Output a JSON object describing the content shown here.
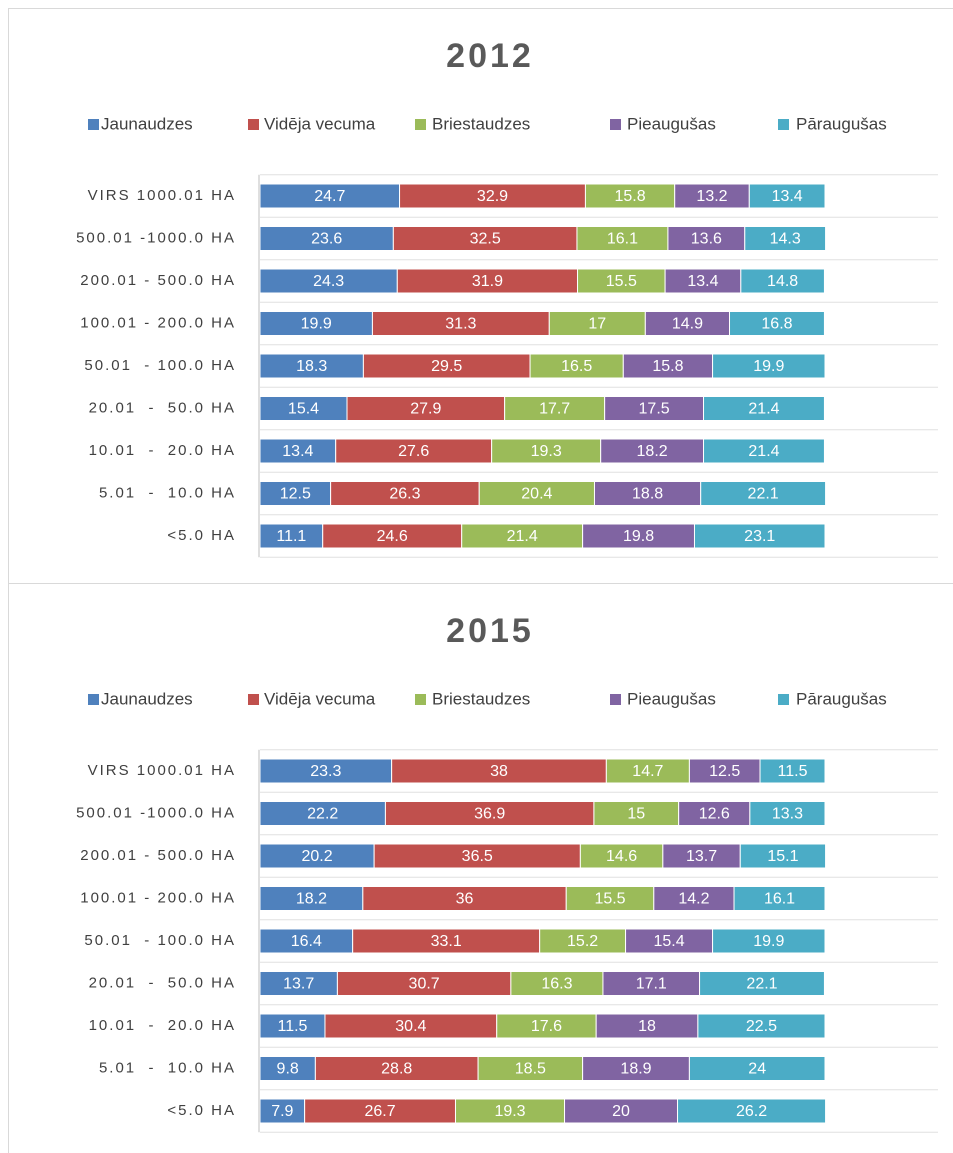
{
  "chart_data": [
    {
      "type": "stacked-bar-horizontal",
      "title": "2012",
      "categories": [
        "VIRS 1000.01 HA",
        "500.01 -1000.0 HA",
        "200.01 - 500.0 HA",
        "100.01 - 200.0 HA",
        "50.01  - 100.0 HA",
        "20.01  -  50.0 HA",
        "10.01  -  20.0 HA",
        "5.01  -  10.0 HA",
        "<5.0 HA"
      ],
      "xlim": [
        0,
        120
      ],
      "series": [
        {
          "name": "Jaunaudzes",
          "color": "#4f81bd",
          "values": [
            24.7,
            23.6,
            24.3,
            19.9,
            18.3,
            15.4,
            13.4,
            12.5,
            11.1
          ]
        },
        {
          "name": "Vidēja vecuma",
          "color": "#c0504d",
          "values": [
            32.9,
            32.5,
            31.9,
            31.3,
            29.5,
            27.9,
            27.6,
            26.3,
            24.6
          ]
        },
        {
          "name": "Briestaudzes",
          "color": "#9bbb59",
          "values": [
            15.8,
            16.1,
            15.5,
            17,
            16.5,
            17.7,
            19.3,
            20.4,
            21.4
          ]
        },
        {
          "name": "Pieaugušas",
          "color": "#8064a2",
          "values": [
            13.2,
            13.6,
            13.4,
            14.9,
            15.8,
            17.5,
            18.2,
            18.8,
            19.8
          ]
        },
        {
          "name": "Pāraugušas",
          "color": "#4bacc6",
          "values": [
            13.4,
            14.3,
            14.8,
            16.8,
            19.9,
            21.4,
            21.4,
            22.1,
            23.1
          ]
        }
      ]
    },
    {
      "type": "stacked-bar-horizontal",
      "title": "2015",
      "categories": [
        "VIRS 1000.01 HA",
        "500.01 -1000.0 HA",
        "200.01 - 500.0 HA",
        "100.01 - 200.0 HA",
        "50.01  - 100.0 HA",
        "20.01  -  50.0 HA",
        "10.01  -  20.0 HA",
        "5.01  -  10.0 HA",
        "<5.0 HA"
      ],
      "xlim": [
        0,
        120
      ],
      "series": [
        {
          "name": "Jaunaudzes",
          "color": "#4f81bd",
          "values": [
            23.3,
            22.2,
            20.2,
            18.2,
            16.4,
            13.7,
            11.5,
            9.8,
            7.9
          ]
        },
        {
          "name": "Vidēja vecuma",
          "color": "#c0504d",
          "values": [
            38,
            36.9,
            36.5,
            36,
            33.1,
            30.7,
            30.4,
            28.8,
            26.7
          ]
        },
        {
          "name": "Briestaudzes",
          "color": "#9bbb59",
          "values": [
            14.7,
            15,
            14.6,
            15.5,
            15.2,
            16.3,
            17.6,
            18.5,
            19.3
          ]
        },
        {
          "name": "Pieaugušas",
          "color": "#8064a2",
          "values": [
            12.5,
            12.6,
            13.7,
            14.2,
            15.4,
            17.1,
            18,
            18.9,
            20
          ]
        },
        {
          "name": "Pāraugušas",
          "color": "#4bacc6",
          "values": [
            11.5,
            13.3,
            15.1,
            16.1,
            19.9,
            22.1,
            22.5,
            24,
            26.2
          ]
        }
      ]
    }
  ]
}
